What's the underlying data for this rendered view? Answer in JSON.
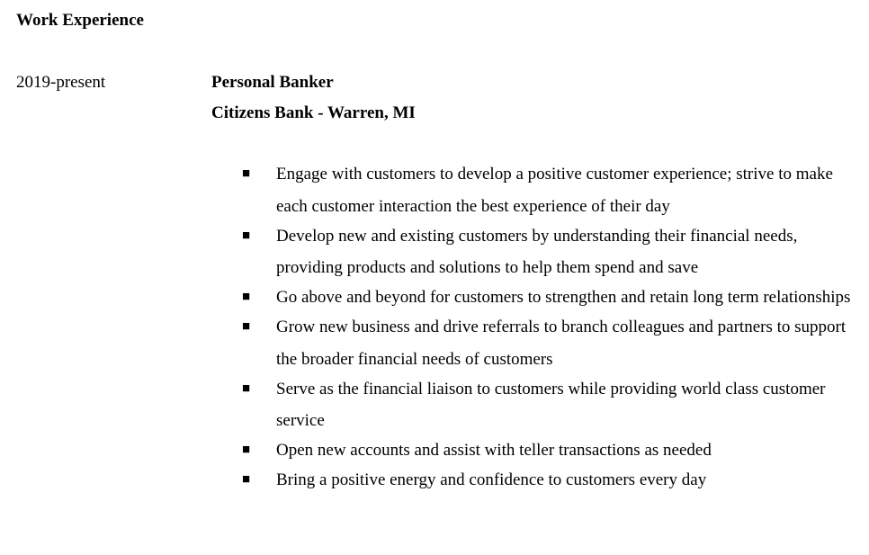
{
  "section": {
    "title": "Work Experience"
  },
  "job": {
    "dates": "2019-present",
    "title": "Personal Banker",
    "employer": "Citizens Bank - Warren, MI",
    "bullet_glyph": "■",
    "duties": [
      "Engage with customers to develop a positive customer experience; strive to make each customer interaction the best experience of their day",
      "Develop new and existing customers by understanding their financial needs, providing products and solutions to help them spend and save",
      "Go above and beyond for customers to strengthen and retain long term relationships",
      "Grow new business and drive referrals to branch colleagues and partners to support the broader financial needs of customers",
      "Serve as the financial liaison to customers while providing world class customer service",
      "Open new accounts and assist with teller transactions as needed",
      "Bring a positive energy and confidence to customers every day"
    ]
  }
}
